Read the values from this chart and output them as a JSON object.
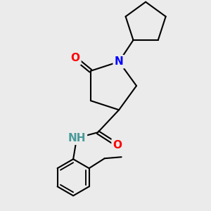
{
  "bg_color": "#ebebeb",
  "bond_color": "#000000",
  "bond_width": 1.5,
  "atom_colors": {
    "O": "#ff0000",
    "N": "#0000ff",
    "NH": "#4a9a9a",
    "C": "#000000"
  },
  "font_size_atom": 11,
  "figure_size": [
    3.0,
    3.0
  ],
  "dpi": 100
}
